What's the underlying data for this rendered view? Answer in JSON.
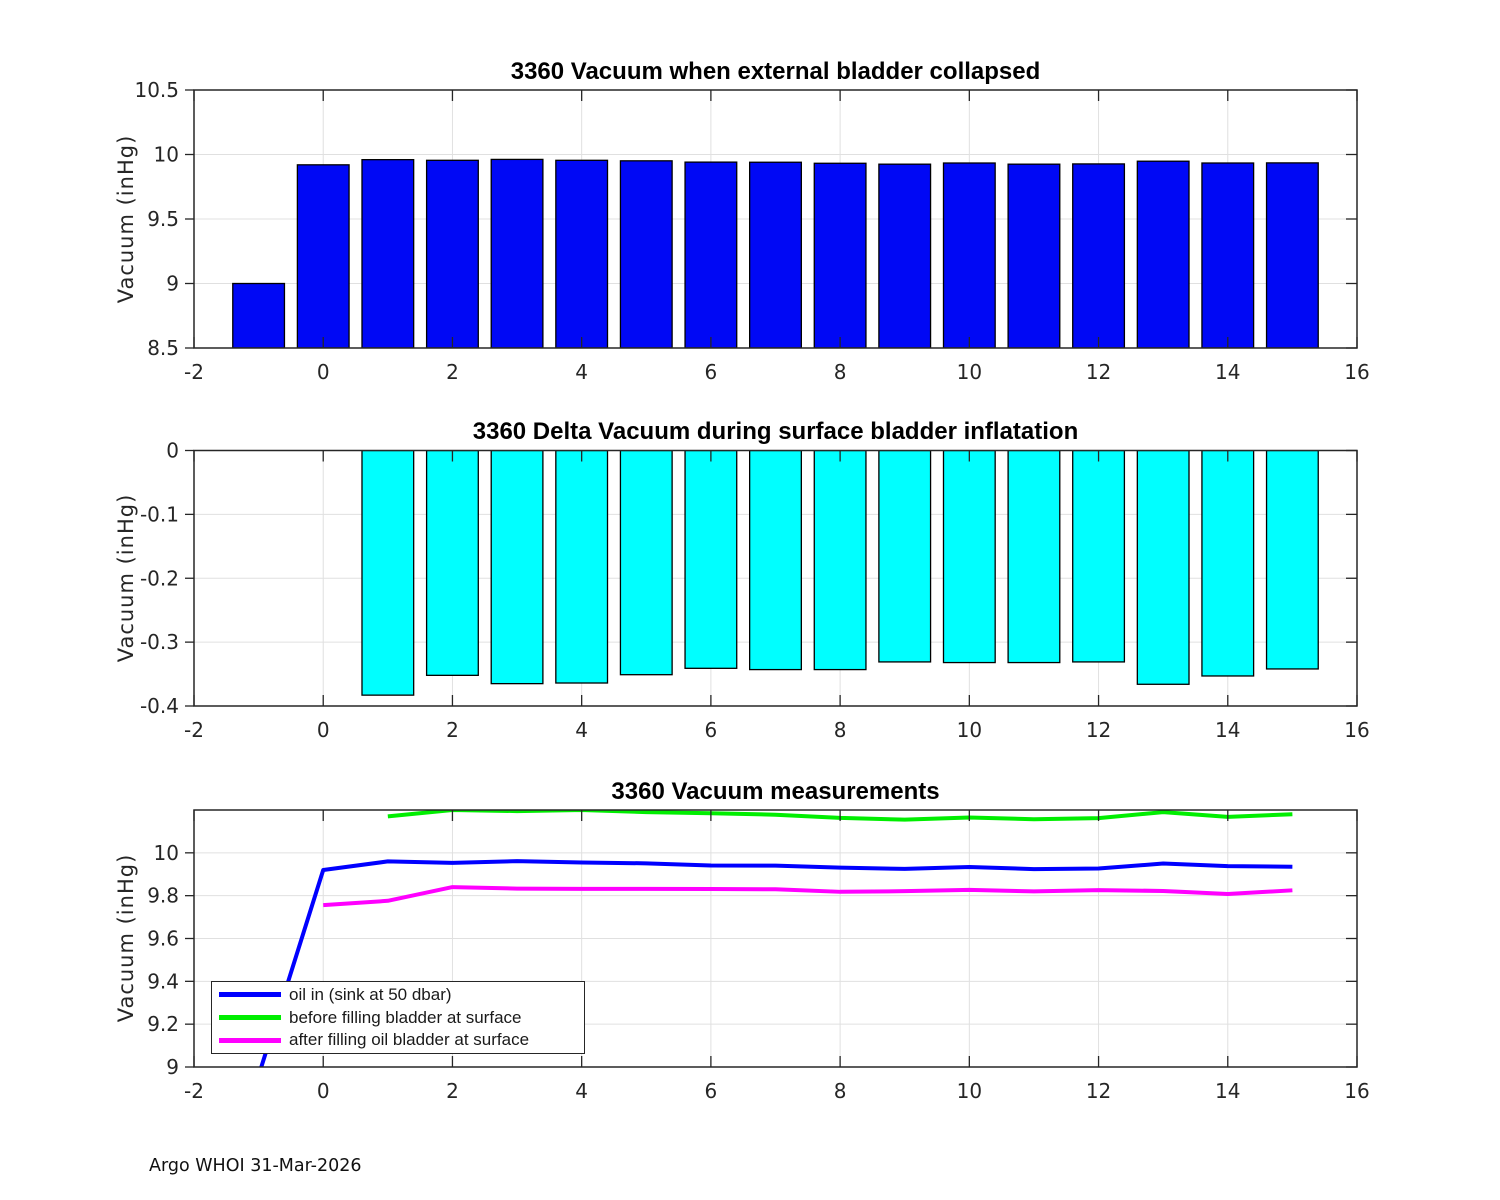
{
  "figure": {
    "footer": "Argo WHOI 31-Mar-2026",
    "background_color": "#ffffff",
    "axis_color": "#262626",
    "grid_color": "#e0e0e0"
  },
  "chart_data": [
    {
      "id": "vacuum-collapsed",
      "type": "bar",
      "title": "3360 Vacuum when external bladder collapsed",
      "xlabel": "",
      "ylabel": "Vacuum (inHg)",
      "bar_color": "#0008f5",
      "bar_edge_color": "#000000",
      "grid": true,
      "xlim": [
        -2,
        16
      ],
      "ylim": [
        8.5,
        10.5
      ],
      "xticks": [
        -2,
        0,
        2,
        4,
        6,
        8,
        10,
        12,
        14,
        16
      ],
      "yticks": [
        8.5,
        9,
        9.5,
        10,
        10.5
      ],
      "x": [
        -1,
        0,
        1,
        2,
        3,
        4,
        5,
        6,
        7,
        8,
        9,
        10,
        11,
        12,
        13,
        14,
        15
      ],
      "values": [
        9.0,
        9.92,
        9.96,
        9.955,
        9.962,
        9.955,
        9.951,
        9.941,
        9.94,
        9.932,
        9.925,
        9.934,
        9.925,
        9.927,
        9.948,
        9.934,
        9.935
      ]
    },
    {
      "id": "delta-vacuum",
      "type": "bar",
      "title": "3360 Delta Vacuum during surface bladder inflatation",
      "xlabel": "",
      "ylabel": "Vacuum (inHg)",
      "bar_color": "#00ffff",
      "bar_edge_color": "#000000",
      "grid": true,
      "xlim": [
        -2,
        16
      ],
      "ylim": [
        -0.4,
        0
      ],
      "xticks": [
        -2,
        0,
        2,
        4,
        6,
        8,
        10,
        12,
        14,
        16
      ],
      "yticks": [
        -0.4,
        -0.3,
        -0.2,
        -0.1,
        0
      ],
      "x": [
        1,
        2,
        3,
        4,
        5,
        6,
        7,
        8,
        9,
        10,
        11,
        12,
        13,
        14,
        15
      ],
      "values": [
        -0.383,
        -0.352,
        -0.365,
        -0.364,
        -0.351,
        -0.341,
        -0.343,
        -0.343,
        -0.331,
        -0.332,
        -0.332,
        -0.331,
        -0.366,
        -0.353,
        -0.342
      ]
    },
    {
      "id": "vacuum-measurements",
      "type": "line",
      "title": "3360 Vacuum measurements",
      "xlabel": "",
      "ylabel": "Vacuum (inHg)",
      "grid": true,
      "legend_position": "bottom-left",
      "xlim": [
        -2,
        16
      ],
      "ylim": [
        9,
        10.2
      ],
      "xticks": [
        -2,
        0,
        2,
        4,
        6,
        8,
        10,
        12,
        14,
        16
      ],
      "yticks": [
        9,
        9.2,
        9.4,
        9.6,
        9.8,
        10
      ],
      "series": [
        {
          "name": "oil in (sink at 50 dbar)",
          "color": "#0000ff",
          "x": [
            -1,
            0,
            1,
            2,
            3,
            4,
            5,
            6,
            7,
            8,
            9,
            10,
            11,
            12,
            13,
            14,
            15
          ],
          "values": [
            8.96,
            9.92,
            9.96,
            9.953,
            9.961,
            9.955,
            9.951,
            9.941,
            9.94,
            9.931,
            9.925,
            9.934,
            9.924,
            9.927,
            9.95,
            9.938,
            9.935
          ]
        },
        {
          "name": "before filling bladder at surface",
          "color": "#00ee00",
          "x": [
            1,
            2,
            3,
            4,
            5,
            6,
            7,
            8,
            9,
            10,
            11,
            12,
            13,
            14,
            15
          ],
          "values": [
            10.17,
            10.2,
            10.195,
            10.2,
            10.19,
            10.185,
            10.178,
            10.163,
            10.155,
            10.165,
            10.157,
            10.162,
            10.19,
            10.168,
            10.18
          ]
        },
        {
          "name": "after filling oil bladder at surface",
          "color": "#ff00ff",
          "x": [
            0,
            1,
            2,
            3,
            4,
            5,
            6,
            7,
            8,
            9,
            10,
            11,
            12,
            13,
            14,
            15
          ],
          "values": [
            9.756,
            9.776,
            9.84,
            9.833,
            9.832,
            9.832,
            9.831,
            9.83,
            9.818,
            9.821,
            9.827,
            9.82,
            9.826,
            9.822,
            9.808,
            9.825
          ]
        }
      ]
    }
  ]
}
